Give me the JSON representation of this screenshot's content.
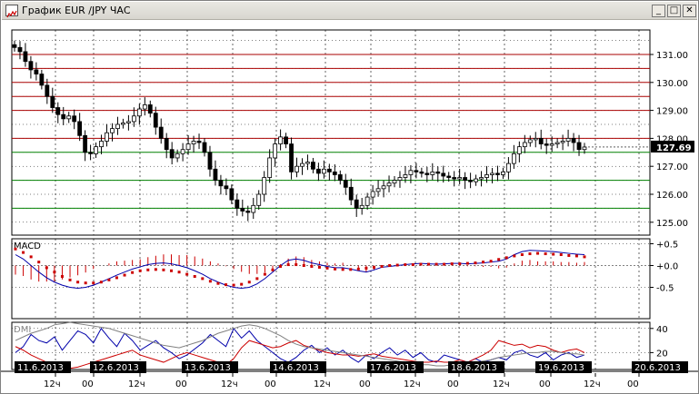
{
  "window": {
    "title": "График EUR /JPY ЧАС",
    "controls": {
      "minimize": "_",
      "maximize": "□",
      "close": "✕"
    }
  },
  "chart_data": [
    {
      "type": "candlestick",
      "title": "",
      "price_scale": [
        "131.00",
        "130.00",
        "129.00",
        "128.00",
        "127.00",
        "126.00",
        "125.00"
      ],
      "current_price": "127.69",
      "horizontal_levels": {
        "red": [
          131.0,
          130.5,
          130.0,
          129.5,
          129.0,
          128.0
        ],
        "green": [
          127.5,
          126.5,
          125.5
        ]
      },
      "close_series": [
        131.25,
        131.1,
        130.75,
        130.45,
        130.3,
        129.9,
        129.5,
        129.1,
        128.85,
        128.7,
        128.8,
        128.6,
        128.1,
        127.5,
        127.45,
        127.7,
        127.9,
        128.2,
        128.35,
        128.5,
        128.55,
        128.6,
        128.8,
        129.05,
        129.2,
        128.9,
        128.4,
        128.0,
        127.6,
        127.3,
        127.45,
        127.6,
        127.8,
        127.9,
        127.85,
        127.5,
        126.9,
        126.5,
        126.3,
        126.2,
        125.8,
        125.5,
        125.4,
        125.35,
        125.6,
        126.0,
        126.6,
        127.3,
        127.8,
        128.05,
        127.8,
        126.8,
        127.0,
        127.1,
        127.15,
        126.9,
        126.75,
        126.9,
        126.8,
        126.7,
        126.5,
        126.25,
        125.8,
        125.5,
        125.6,
        125.9,
        126.1,
        126.2,
        126.3,
        126.4,
        126.5,
        126.6,
        126.7,
        126.85,
        126.8,
        126.75,
        126.7,
        126.8,
        126.75,
        126.65,
        126.6,
        126.55,
        126.6,
        126.5,
        126.45,
        126.55,
        126.6,
        126.7,
        126.75,
        126.7,
        126.8,
        127.1,
        127.45,
        127.7,
        127.85,
        127.95,
        128.0,
        127.8,
        127.75,
        127.8,
        127.85,
        127.9,
        128.0,
        127.85,
        127.6,
        127.69
      ]
    },
    {
      "type": "line",
      "title": "MACD",
      "scale": [
        "+0.5",
        "+0.0",
        "-0.5"
      ],
      "ylim": [
        -0.65,
        0.62
      ],
      "series": [
        {
          "name": "",
          "color": "#0000aa",
          "values": [
            0.25,
            0.15,
            0.0,
            -0.15,
            -0.28,
            -0.38,
            -0.45,
            -0.5,
            -0.52,
            -0.5,
            -0.45,
            -0.38,
            -0.3,
            -0.22,
            -0.15,
            -0.08,
            -0.03,
            0.02,
            0.05,
            0.06,
            0.04,
            0.0,
            -0.05,
            -0.12,
            -0.2,
            -0.3,
            -0.38,
            -0.45,
            -0.5,
            -0.52,
            -0.5,
            -0.42,
            -0.3,
            -0.15,
            0.0,
            0.12,
            0.15,
            0.12,
            0.06,
            0.02,
            -0.02,
            -0.05,
            -0.05,
            -0.08,
            -0.12,
            -0.15,
            -0.1,
            -0.04,
            -0.02,
            0.0,
            0.02,
            0.04,
            0.05,
            0.04,
            0.03,
            0.04,
            0.05,
            0.05,
            0.04,
            0.05,
            0.06,
            0.08,
            0.1,
            0.15,
            0.25,
            0.32,
            0.35,
            0.34,
            0.33,
            0.32,
            0.3,
            0.28,
            0.26,
            0.25
          ]
        },
        {
          "name": "",
          "color": "#cc0000",
          "values": [
            0.38,
            0.3,
            0.2,
            0.08,
            -0.05,
            -0.15,
            -0.25,
            -0.33,
            -0.38,
            -0.4,
            -0.4,
            -0.38,
            -0.33,
            -0.28,
            -0.22,
            -0.16,
            -0.12,
            -0.1,
            -0.09,
            -0.1,
            -0.12,
            -0.15,
            -0.2,
            -0.25,
            -0.3,
            -0.36,
            -0.41,
            -0.44,
            -0.45,
            -0.43,
            -0.38,
            -0.3,
            -0.2,
            -0.1,
            -0.02,
            0.02,
            0.02,
            0.0,
            -0.02,
            -0.04,
            -0.06,
            -0.08,
            -0.09,
            -0.09,
            -0.08,
            -0.06,
            -0.04,
            -0.02,
            0.0,
            0.01,
            0.02,
            0.02,
            0.03,
            0.03,
            0.03,
            0.03,
            0.04,
            0.04,
            0.05,
            0.06,
            0.08,
            0.1,
            0.14,
            0.18,
            0.22,
            0.25,
            0.27,
            0.28,
            0.27,
            0.26,
            0.25,
            0.23,
            0.22,
            0.2
          ]
        }
      ]
    },
    {
      "type": "line",
      "title": "DMI",
      "scale": [
        "40",
        "20"
      ],
      "ylim": [
        0,
        48
      ],
      "series": [
        {
          "name": "",
          "color": "#0000aa",
          "values": [
            20,
            25,
            35,
            30,
            28,
            33,
            22,
            30,
            38,
            35,
            28,
            40,
            32,
            25,
            36,
            30,
            22,
            26,
            30,
            24,
            20,
            15,
            18,
            23,
            28,
            35,
            30,
            25,
            40,
            32,
            38,
            30,
            25,
            20,
            15,
            12,
            16,
            22,
            26,
            20,
            24,
            18,
            22,
            16,
            12,
            18,
            15,
            20,
            24,
            18,
            22,
            16,
            20,
            14,
            12,
            18,
            16,
            14,
            12,
            15,
            12,
            14,
            16,
            14,
            20,
            22,
            18,
            16,
            20,
            14,
            18,
            20,
            16,
            18
          ]
        },
        {
          "name": "",
          "color": "#cc0000",
          "values": [
            25,
            22,
            18,
            15,
            12,
            10,
            8,
            7,
            8,
            10,
            12,
            14,
            16,
            18,
            20,
            22,
            18,
            16,
            14,
            12,
            15,
            18,
            20,
            18,
            16,
            14,
            12,
            10,
            15,
            24,
            30,
            28,
            26,
            24,
            25,
            28,
            30,
            26,
            24,
            22,
            20,
            19,
            18,
            18,
            17,
            18,
            19,
            17,
            16,
            15,
            14,
            13,
            12,
            12,
            13,
            12,
            12,
            14,
            12,
            15,
            18,
            22,
            30,
            28,
            26,
            27,
            24,
            26,
            25,
            22,
            20,
            22,
            23,
            20
          ]
        },
        {
          "name": "",
          "color": "#808080",
          "values": [
            30,
            33,
            36,
            38,
            40,
            43,
            44,
            45,
            44,
            43,
            42,
            41,
            40,
            38,
            36,
            34,
            32,
            30,
            28,
            26,
            25,
            24,
            26,
            28,
            30,
            33,
            36,
            38,
            40,
            42,
            43,
            42,
            40,
            37,
            34,
            30,
            27,
            25,
            24,
            23,
            22,
            21,
            20,
            19,
            18,
            17,
            16,
            15,
            14,
            13,
            12,
            11,
            10,
            10,
            9,
            9,
            10,
            10,
            11,
            12,
            13,
            14,
            16,
            17,
            18,
            19,
            20,
            20,
            21,
            21,
            20,
            19,
            19,
            18
          ]
        }
      ]
    }
  ],
  "time_axis": {
    "dates": [
      "11.6.2013",
      "12.6.2013",
      "13.6.2013",
      "14.6.2013",
      "17.6.2013",
      "18.6.2013",
      "19.6.2013",
      "20.6.2013"
    ],
    "hours": [
      "12ч",
      "00",
      "12ч",
      "00",
      "12ч",
      "00",
      "12ч",
      "00",
      "12ч",
      "00",
      "12ч",
      "00",
      "12ч",
      "00"
    ]
  }
}
